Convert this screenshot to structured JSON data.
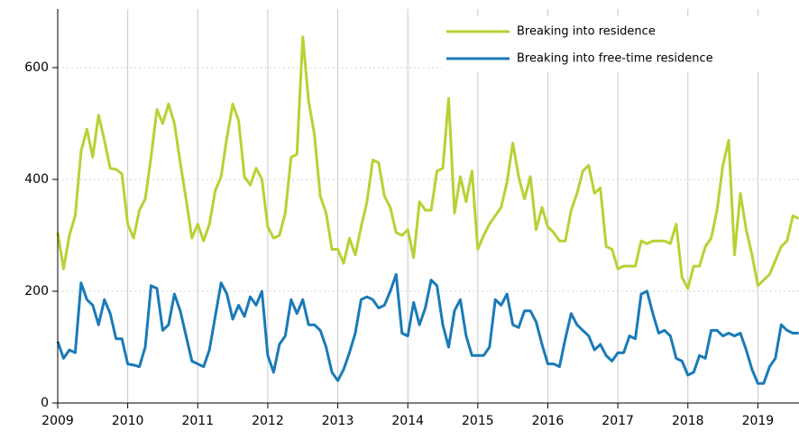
{
  "chart_data": {
    "type": "line",
    "categories": [
      "2009",
      null,
      null,
      null,
      null,
      null,
      null,
      null,
      null,
      null,
      null,
      null,
      "2010",
      null,
      null,
      null,
      null,
      null,
      null,
      null,
      null,
      null,
      null,
      null,
      "2011",
      null,
      null,
      null,
      null,
      null,
      null,
      null,
      null,
      null,
      null,
      null,
      "2012",
      null,
      null,
      null,
      null,
      null,
      null,
      null,
      null,
      null,
      null,
      null,
      "2013",
      null,
      null,
      null,
      null,
      null,
      null,
      null,
      null,
      null,
      null,
      null,
      "2014",
      null,
      null,
      null,
      null,
      null,
      null,
      null,
      null,
      null,
      null,
      null,
      "2015",
      null,
      null,
      null,
      null,
      null,
      null,
      null,
      null,
      null,
      null,
      null,
      "2016",
      null,
      null,
      null,
      null,
      null,
      null,
      null,
      null,
      null,
      null,
      null,
      "2017",
      null,
      null,
      null,
      null,
      null,
      null,
      null,
      null,
      null,
      null,
      null,
      "2018",
      null,
      null,
      null,
      null,
      null,
      null,
      null,
      null,
      null,
      null,
      null,
      "2019",
      null,
      null,
      null,
      null,
      null,
      null,
      null
    ],
    "series": [
      {
        "name": "Breaking into residence",
        "color": "#b5d334",
        "values": [
          305,
          240,
          300,
          335,
          450,
          490,
          440,
          515,
          470,
          420,
          418,
          410,
          320,
          295,
          345,
          365,
          440,
          525,
          500,
          535,
          500,
          430,
          365,
          295,
          320,
          290,
          320,
          380,
          405,
          475,
          535,
          505,
          405,
          390,
          420,
          400,
          315,
          295,
          300,
          340,
          440,
          445,
          655,
          540,
          480,
          370,
          340,
          275,
          275,
          250,
          295,
          265,
          315,
          360,
          435,
          430,
          370,
          350,
          305,
          300,
          310,
          260,
          360,
          345,
          345,
          415,
          420,
          545,
          340,
          405,
          360,
          415,
          275,
          300,
          320,
          335,
          350,
          395,
          465,
          405,
          365,
          405,
          310,
          350,
          315,
          305,
          290,
          290,
          345,
          375,
          415,
          425,
          375,
          385,
          280,
          275,
          240,
          245,
          245,
          245,
          290,
          285,
          290,
          290,
          290,
          285,
          320,
          225,
          205,
          245,
          245,
          280,
          295,
          345,
          425,
          470,
          265,
          375,
          310,
          265,
          210,
          220,
          230,
          255,
          280,
          290,
          335,
          330
        ]
      },
      {
        "name": "Breaking into free-time residence",
        "color": "#1a7ab8",
        "values": [
          110,
          80,
          95,
          90,
          215,
          185,
          175,
          140,
          185,
          160,
          115,
          115,
          70,
          68,
          65,
          100,
          210,
          205,
          130,
          140,
          195,
          165,
          120,
          75,
          70,
          65,
          95,
          155,
          215,
          195,
          150,
          175,
          155,
          190,
          175,
          200,
          85,
          55,
          105,
          120,
          185,
          160,
          185,
          140,
          140,
          130,
          100,
          55,
          40,
          60,
          90,
          125,
          185,
          190,
          185,
          170,
          175,
          200,
          230,
          125,
          120,
          180,
          140,
          170,
          220,
          210,
          140,
          100,
          165,
          185,
          120,
          85,
          85,
          85,
          100,
          185,
          175,
          195,
          140,
          135,
          165,
          165,
          145,
          105,
          70,
          70,
          65,
          115,
          160,
          140,
          130,
          120,
          95,
          105,
          85,
          75,
          90,
          90,
          120,
          115,
          195,
          200,
          160,
          125,
          130,
          120,
          80,
          75,
          50,
          55,
          85,
          80,
          130,
          130,
          120,
          125,
          120,
          125,
          95,
          60,
          35,
          35,
          65,
          80,
          140,
          130,
          125,
          125
        ]
      }
    ],
    "ylim": [
      0,
      700
    ],
    "yticks": [
      0,
      200,
      400,
      600
    ],
    "grid": true,
    "legend": "top-right"
  }
}
